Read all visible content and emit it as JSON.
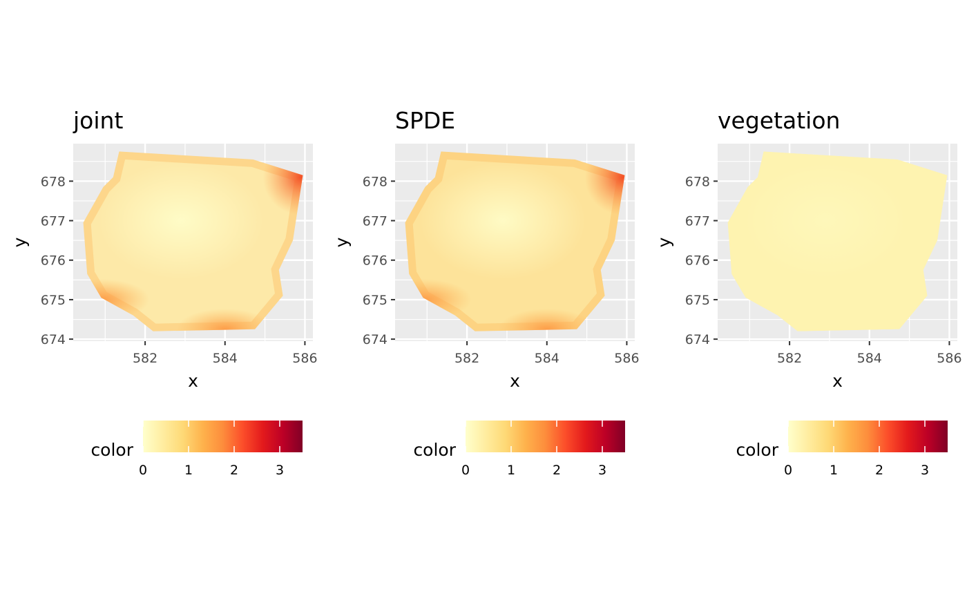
{
  "chart_data": [
    {
      "type": "heatmap",
      "title": "joint",
      "xlabel": "x",
      "ylabel": "y",
      "x_ticks": [
        582,
        584,
        586
      ],
      "y_ticks": [
        674,
        675,
        676,
        677,
        678
      ],
      "xlim": [
        580.2,
        586.2
      ],
      "ylim": [
        673.95,
        678.95
      ],
      "grid": true,
      "legend": {
        "title": "color",
        "position": "bottom",
        "ticks": [
          0,
          1,
          2,
          3
        ],
        "range": [
          0,
          3.5
        ]
      },
      "fill_description_level": {
        "typical": 0.35,
        "min": 0.1,
        "max": 1.8
      },
      "region_boundary": [
        [
          581.35,
          678.75
        ],
        [
          584.7,
          678.55
        ],
        [
          585.95,
          678.15
        ],
        [
          585.7,
          676.5
        ],
        [
          585.35,
          675.75
        ],
        [
          585.45,
          675.1
        ],
        [
          584.75,
          674.25
        ],
        [
          582.2,
          674.2
        ],
        [
          581.7,
          674.6
        ],
        [
          580.9,
          675.05
        ],
        [
          580.55,
          675.65
        ],
        [
          580.45,
          676.95
        ],
        [
          580.95,
          677.85
        ],
        [
          581.2,
          678.1
        ]
      ],
      "hotspots": [
        {
          "x": 585.9,
          "y": 678.1,
          "value": 1.8
        },
        {
          "x": 584.0,
          "y": 674.25,
          "value": 1.0
        },
        {
          "x": 580.9,
          "y": 675.0,
          "value": 0.9
        }
      ]
    },
    {
      "type": "heatmap",
      "title": "SPDE",
      "xlabel": "x",
      "ylabel": "y",
      "x_ticks": [
        582,
        584,
        586
      ],
      "y_ticks": [
        674,
        675,
        676,
        677,
        678
      ],
      "xlim": [
        580.2,
        586.2
      ],
      "ylim": [
        673.95,
        678.95
      ],
      "grid": true,
      "legend": {
        "title": "color",
        "position": "bottom",
        "ticks": [
          0,
          1,
          2,
          3
        ],
        "range": [
          0,
          3.5
        ]
      },
      "region_boundary": [
        [
          581.35,
          678.75
        ],
        [
          584.7,
          678.55
        ],
        [
          585.95,
          678.15
        ],
        [
          585.7,
          676.5
        ],
        [
          585.35,
          675.75
        ],
        [
          585.45,
          675.1
        ],
        [
          584.75,
          674.25
        ],
        [
          582.2,
          674.2
        ],
        [
          581.7,
          674.6
        ],
        [
          580.9,
          675.05
        ],
        [
          580.55,
          675.65
        ],
        [
          580.45,
          676.95
        ],
        [
          580.95,
          677.85
        ],
        [
          581.2,
          678.1
        ]
      ],
      "hotspots": [
        {
          "x": 585.9,
          "y": 678.1,
          "value": 1.9
        },
        {
          "x": 584.0,
          "y": 674.25,
          "value": 1.0
        },
        {
          "x": 580.9,
          "y": 675.0,
          "value": 0.95
        }
      ]
    },
    {
      "type": "heatmap",
      "title": "vegetation",
      "xlabel": "x",
      "ylabel": "y",
      "x_ticks": [
        582,
        584,
        586
      ],
      "y_ticks": [
        674,
        675,
        676,
        677,
        678
      ],
      "xlim": [
        580.2,
        586.2
      ],
      "ylim": [
        673.95,
        678.95
      ],
      "grid": true,
      "legend": {
        "title": "color",
        "position": "bottom",
        "ticks": [
          0,
          1,
          2,
          3
        ],
        "range": [
          0,
          3.5
        ]
      },
      "region_boundary": [
        [
          581.35,
          678.75
        ],
        [
          584.7,
          678.55
        ],
        [
          585.95,
          678.15
        ],
        [
          585.7,
          676.5
        ],
        [
          585.35,
          675.75
        ],
        [
          585.45,
          675.1
        ],
        [
          584.75,
          674.25
        ],
        [
          582.2,
          674.2
        ],
        [
          581.7,
          674.6
        ],
        [
          580.9,
          675.05
        ],
        [
          580.55,
          675.65
        ],
        [
          580.45,
          676.95
        ],
        [
          580.95,
          677.85
        ],
        [
          581.2,
          678.1
        ]
      ],
      "hotspots": []
    }
  ],
  "colors": {
    "panel_bg": "#ebebeb",
    "grid": "#ffffff",
    "base_fill_joint": "#fde9a8",
    "base_fill_spde": "#fde39a",
    "base_fill_vegetation": "#fef3b0",
    "scale": [
      "#ffffcc",
      "#ffeda0",
      "#fed976",
      "#feb24c",
      "#fd8d3c",
      "#fc4e2a",
      "#e31a1c",
      "#bd0026",
      "#800026"
    ]
  }
}
